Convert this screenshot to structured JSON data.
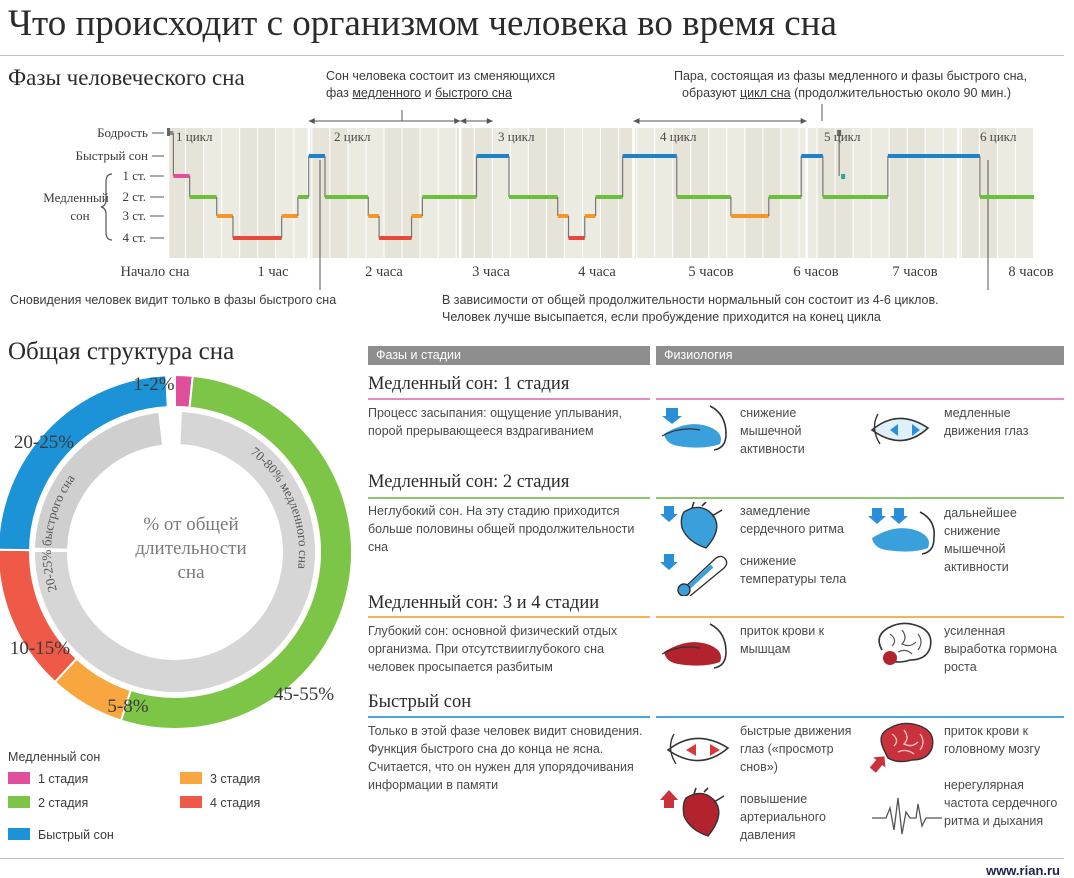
{
  "title": "Что происходит с организмом человека во время сна",
  "phases": {
    "heading": "Фазы человеческого сна",
    "note_top_center": {
      "line1": "Сон человека состоит из сменяющихся",
      "line2_a": "фаз ",
      "line2_b": "медленного",
      "line2_c": " и ",
      "line2_d": "быстрого сна"
    },
    "note_top_right": {
      "line1": "Пара, состоящая из фазы медленного и фазы быстрого сна,",
      "line2_a": "образуют ",
      "line2_b": "цикл сна",
      "line2_c": " (продолжительностью около 90 мин.)"
    },
    "note_dreams": "Сновидения человек видит только в фазы быстрого сна",
    "note_cycles_1": "В зависимости от общей продолжительности нормальный сон состоит из 4-6 циклов.",
    "note_cycles_2": "Человек лучше высыпается, если пробуждение приходится на конец цикла",
    "y_labels": {
      "wake": "Бодрость",
      "rem": "Быстрый сон",
      "slow_1": "Медленный",
      "slow_2": "сон",
      "st1": "1 ст.",
      "st2": "2 ст.",
      "st3": "3 ст.",
      "st4": "4 ст."
    },
    "cycles": [
      "1 цикл",
      "2 цикл",
      "3 цикл",
      "4 цикл",
      "5 цикл",
      "6 цикл"
    ],
    "hours": [
      "Начало сна",
      "1 час",
      "2 часа",
      "3 часа",
      "4 часа",
      "5 часов",
      "6 часов",
      "7 часов",
      "8 часов"
    ]
  },
  "chart_data": [
    {
      "type": "line",
      "x_unit": "hours",
      "x_range": [
        0,
        8
      ],
      "levels": [
        "Бодрость",
        "Быстрый сон",
        "1 ст.",
        "2 ст.",
        "3 ст.",
        "4 ст."
      ],
      "series": [
        {
          "x": 0.0,
          "level": "Бодрость"
        },
        {
          "x": 0.05,
          "level": "1 ст."
        },
        {
          "x": 0.2,
          "level": "2 ст."
        },
        {
          "x": 0.45,
          "level": "3 ст."
        },
        {
          "x": 0.6,
          "level": "4 ст."
        },
        {
          "x": 1.05,
          "level": "3 ст."
        },
        {
          "x": 1.2,
          "level": "2 ст."
        },
        {
          "x": 1.3,
          "level": "Быстрый сон"
        },
        {
          "x": 1.45,
          "level": "2 ст."
        },
        {
          "x": 1.85,
          "level": "3 ст."
        },
        {
          "x": 1.95,
          "level": "4 ст."
        },
        {
          "x": 2.25,
          "level": "3 ст."
        },
        {
          "x": 2.35,
          "level": "2 ст."
        },
        {
          "x": 2.85,
          "level": "Быстрый сон"
        },
        {
          "x": 3.15,
          "level": "2 ст."
        },
        {
          "x": 3.6,
          "level": "3 ст."
        },
        {
          "x": 3.7,
          "level": "4 ст."
        },
        {
          "x": 3.85,
          "level": "3 ст."
        },
        {
          "x": 3.95,
          "level": "2 ст."
        },
        {
          "x": 4.2,
          "level": "Быстрый сон"
        },
        {
          "x": 4.7,
          "level": "2 ст."
        },
        {
          "x": 5.2,
          "level": "3 ст."
        },
        {
          "x": 5.55,
          "level": "2 ст."
        },
        {
          "x": 5.85,
          "level": "Быстрый сон"
        },
        {
          "x": 6.05,
          "level": "2 ст."
        },
        {
          "x": 6.65,
          "level": "Быстрый сон"
        },
        {
          "x": 7.5,
          "level": "2 ст."
        },
        {
          "x": 8.0,
          "level": "2 ст."
        }
      ],
      "colors": {
        "Бодрость": "#888888",
        "Быстрый сон": "#1e82c8",
        "1 ст.": "#e04f9b",
        "2 ст.": "#6cbf3d",
        "3 ст.": "#f5962a",
        "4 ст.": "#e8473a"
      }
    },
    {
      "type": "pie",
      "center_label": "% от общей длительности сна",
      "outer": [
        {
          "label": "1-2%",
          "value": 1.5,
          "color": "#e04f9b"
        },
        {
          "label": "45-55%",
          "value": 50,
          "color": "#7cc546"
        },
        {
          "label": "5-8%",
          "value": 6.5,
          "color": "#f7a640"
        },
        {
          "label": "10-15%",
          "value": 12.5,
          "color": "#ee5a47"
        },
        {
          "label": "20-25%",
          "value": 22.5,
          "color": "#1b93d6"
        }
      ],
      "inner": [
        {
          "label": "70-80% медленного сна",
          "value": 75
        },
        {
          "label": "20-25% быстрого сна",
          "value": 22.5
        }
      ]
    }
  ],
  "structure": {
    "heading": "Общая структура сна",
    "legend_title": "Медленный сон",
    "legend": [
      {
        "label": "1 стадия",
        "color": "#e04f9b"
      },
      {
        "label": "3 стадия",
        "color": "#f7a640"
      },
      {
        "label": "2 стадия",
        "color": "#7cc546"
      },
      {
        "label": "4 стадия",
        "color": "#ee5a47"
      },
      {
        "label": "Быстрый сон",
        "color": "#1b93d6"
      }
    ]
  },
  "table": {
    "col1": "Фазы и стадии",
    "col2": "Физиология",
    "sections": [
      {
        "title": "Медленный сон: 1 стадия",
        "color": "#e68bc0",
        "desc": "Процесс засыпания: ощущение уплывания, порой прерывающееся вздрагиванием",
        "items": [
          {
            "text": "снижение мышечной активности",
            "icon": "muscle-arrow-down-icon"
          },
          {
            "text": "медленные движения глаз",
            "icon": "eye-movement-icon"
          }
        ]
      },
      {
        "title": "Медленный сон: 2 стадия",
        "color": "#8cc86a",
        "desc": "Неглубокий сон. На эту стадию приходится больше половины общей продолжительности сна",
        "items": [
          {
            "text": "замедление сердечного ритма",
            "icon": "heart-arrow-down-icon"
          },
          {
            "text": "дальнейшее снижение мышечной активности",
            "icon": "muscle-double-arrow-icon"
          },
          {
            "text": "снижение температуры тела",
            "icon": "thermometer-icon"
          }
        ]
      },
      {
        "title": "Медленный сон: 3 и 4 стадии",
        "color": "#f5b25a",
        "desc": "Глубокий сон: основной физический отдых организма. При отсутствииглубокого сна человек просыпается разбитым",
        "items": [
          {
            "text": "приток крови к мышцам",
            "icon": "muscle-blood-icon"
          },
          {
            "text": "усиленная выработка гормона роста",
            "icon": "brain-hormone-icon"
          }
        ]
      },
      {
        "title": "Быстрый сон",
        "color": "#4aa6dc",
        "desc": "Только в этой фазе человек видит сновидения. Функция быстрого сна до конца не ясна. Считается, что он нужен для упорядочивания информации в памяти",
        "items": [
          {
            "text": "быстрые движения глаз («просмотр снов»)",
            "icon": "rapid-eye-icon"
          },
          {
            "text": "приток крови к головному мозгу",
            "icon": "brain-blood-icon"
          },
          {
            "text": "повышение артериального давления",
            "icon": "heart-arrow-up-icon"
          },
          {
            "text": "нерегулярная частота сердечного ритма и дыхания",
            "icon": "ecg-icon"
          }
        ]
      }
    ]
  },
  "source": "www.rian.ru"
}
